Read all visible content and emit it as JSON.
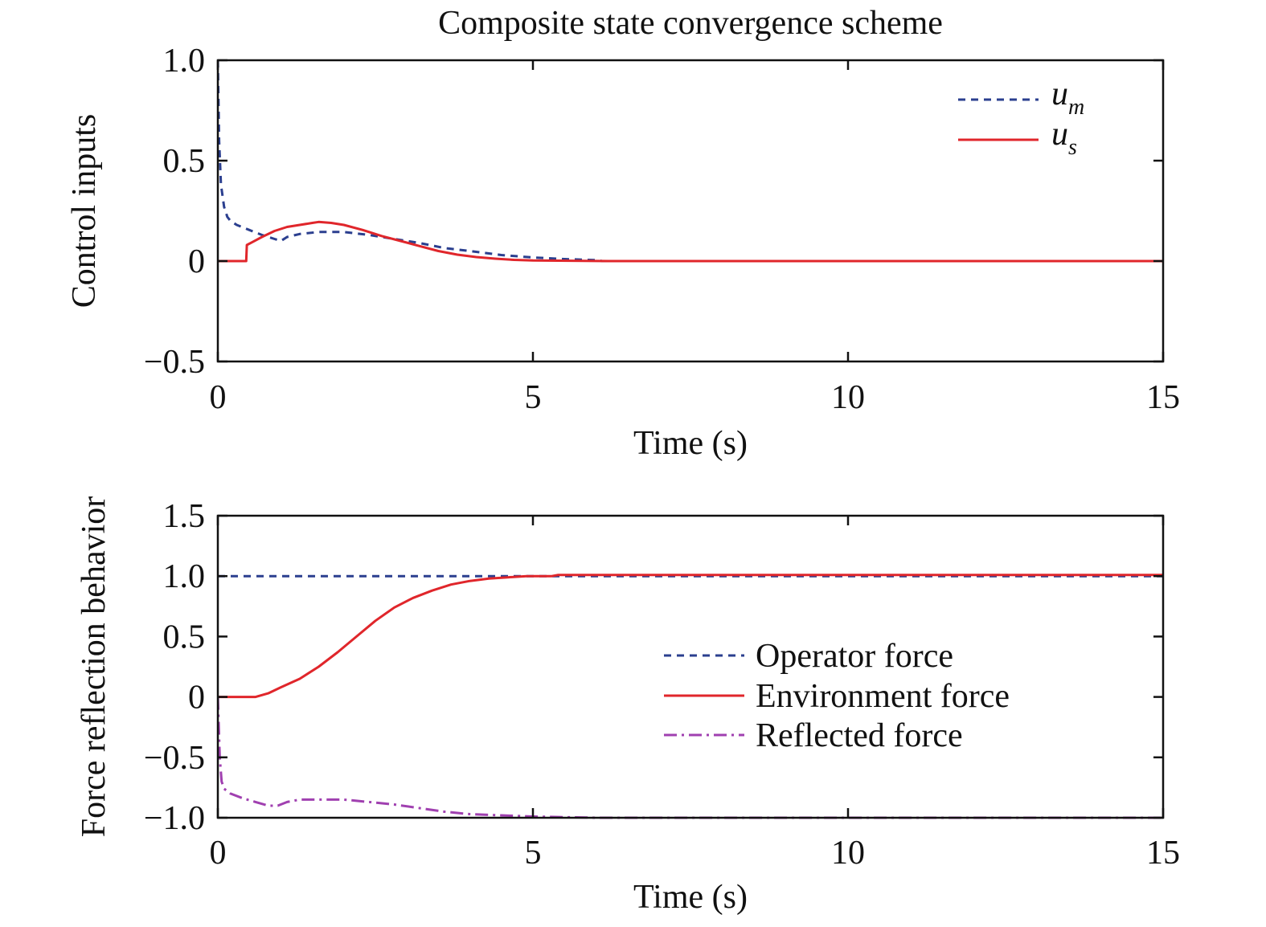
{
  "chart_data": [
    {
      "type": "line",
      "title": "Composite state convergence scheme",
      "xlabel": "Time (s)",
      "ylabel": "Control inputs",
      "xlim": [
        0,
        15
      ],
      "ylim": [
        -0.5,
        1.0
      ],
      "xticks": [
        "0",
        "5",
        "10",
        "15"
      ],
      "yticks": [
        "1.0",
        "0.5",
        "0",
        "−0.5"
      ],
      "grid": false,
      "legend_position": "top-right",
      "series": [
        {
          "name": "u_m",
          "legend_main": "u",
          "legend_sub": "m",
          "style": "dashed",
          "color": "#2b3f8f",
          "x": [
            0,
            0.02,
            0.05,
            0.1,
            0.15,
            0.2,
            0.3,
            0.5,
            0.7,
            0.9,
            1.0,
            1.1,
            1.3,
            1.6,
            2.0,
            2.4,
            2.8,
            3.2,
            3.6,
            4.0,
            4.5,
            5.0,
            5.5,
            6.0,
            6.1,
            7.0,
            10.0,
            15.0
          ],
          "y": [
            1.0,
            0.6,
            0.38,
            0.27,
            0.22,
            0.2,
            0.18,
            0.155,
            0.13,
            0.11,
            0.1,
            0.12,
            0.135,
            0.145,
            0.145,
            0.13,
            0.11,
            0.09,
            0.065,
            0.05,
            0.03,
            0.018,
            0.01,
            0.005,
            0.0,
            0.0,
            0.0,
            0.0
          ]
        },
        {
          "name": "u_s",
          "legend_main": "u",
          "legend_sub": "s",
          "style": "solid",
          "color": "#e0262b",
          "x": [
            0,
            0.45,
            0.46,
            0.55,
            0.7,
            0.9,
            1.1,
            1.3,
            1.5,
            1.6,
            1.8,
            2.0,
            2.3,
            2.6,
            2.9,
            3.2,
            3.5,
            3.8,
            4.1,
            4.4,
            4.7,
            5.0,
            5.4,
            5.8,
            6.2,
            15.0
          ],
          "y": [
            0.0,
            0.0,
            0.08,
            0.095,
            0.12,
            0.15,
            0.17,
            0.18,
            0.19,
            0.195,
            0.19,
            0.18,
            0.155,
            0.125,
            0.1,
            0.075,
            0.05,
            0.032,
            0.02,
            0.012,
            0.006,
            0.003,
            0.002,
            0.001,
            0.0,
            0.0
          ]
        }
      ]
    },
    {
      "type": "line",
      "title": "",
      "xlabel": "Time (s)",
      "ylabel": "Force reflection behavior",
      "xlim": [
        0,
        15
      ],
      "ylim": [
        -1.0,
        1.5
      ],
      "xticks": [
        "0",
        "5",
        "10",
        "15"
      ],
      "yticks": [
        "1.5",
        "1.0",
        "0.5",
        "0",
        "−0.5",
        "−1.0"
      ],
      "grid": false,
      "legend_position": "center-right",
      "series": [
        {
          "name": "Operator force",
          "style": "dashed",
          "color": "#2b3f8f",
          "x": [
            0,
            15
          ],
          "y": [
            1.0,
            1.0
          ]
        },
        {
          "name": "Environment force",
          "style": "solid",
          "color": "#e0262b",
          "x": [
            0,
            0.6,
            0.8,
            1.0,
            1.3,
            1.6,
            1.9,
            2.2,
            2.5,
            2.8,
            3.1,
            3.4,
            3.7,
            4.0,
            4.3,
            4.6,
            4.9,
            5.3,
            5.4,
            15.0
          ],
          "y": [
            0.0,
            0.0,
            0.03,
            0.08,
            0.15,
            0.25,
            0.37,
            0.5,
            0.63,
            0.74,
            0.82,
            0.88,
            0.93,
            0.96,
            0.98,
            0.99,
            1.0,
            1.0,
            1.01,
            1.01
          ]
        },
        {
          "name": "Reflected force",
          "style": "dashdot",
          "color": "#a040b0",
          "x": [
            0,
            0.03,
            0.06,
            0.1,
            0.2,
            0.4,
            0.6,
            0.8,
            0.95,
            1.1,
            1.3,
            1.6,
            2.0,
            2.4,
            2.8,
            3.2,
            3.6,
            4.0,
            4.5,
            5.0,
            6.0,
            15.0
          ],
          "y": [
            0.0,
            -0.5,
            -0.7,
            -0.76,
            -0.8,
            -0.84,
            -0.87,
            -0.9,
            -0.9,
            -0.87,
            -0.85,
            -0.85,
            -0.85,
            -0.87,
            -0.89,
            -0.92,
            -0.95,
            -0.97,
            -0.98,
            -0.99,
            -1.0,
            -1.0
          ]
        }
      ]
    }
  ]
}
